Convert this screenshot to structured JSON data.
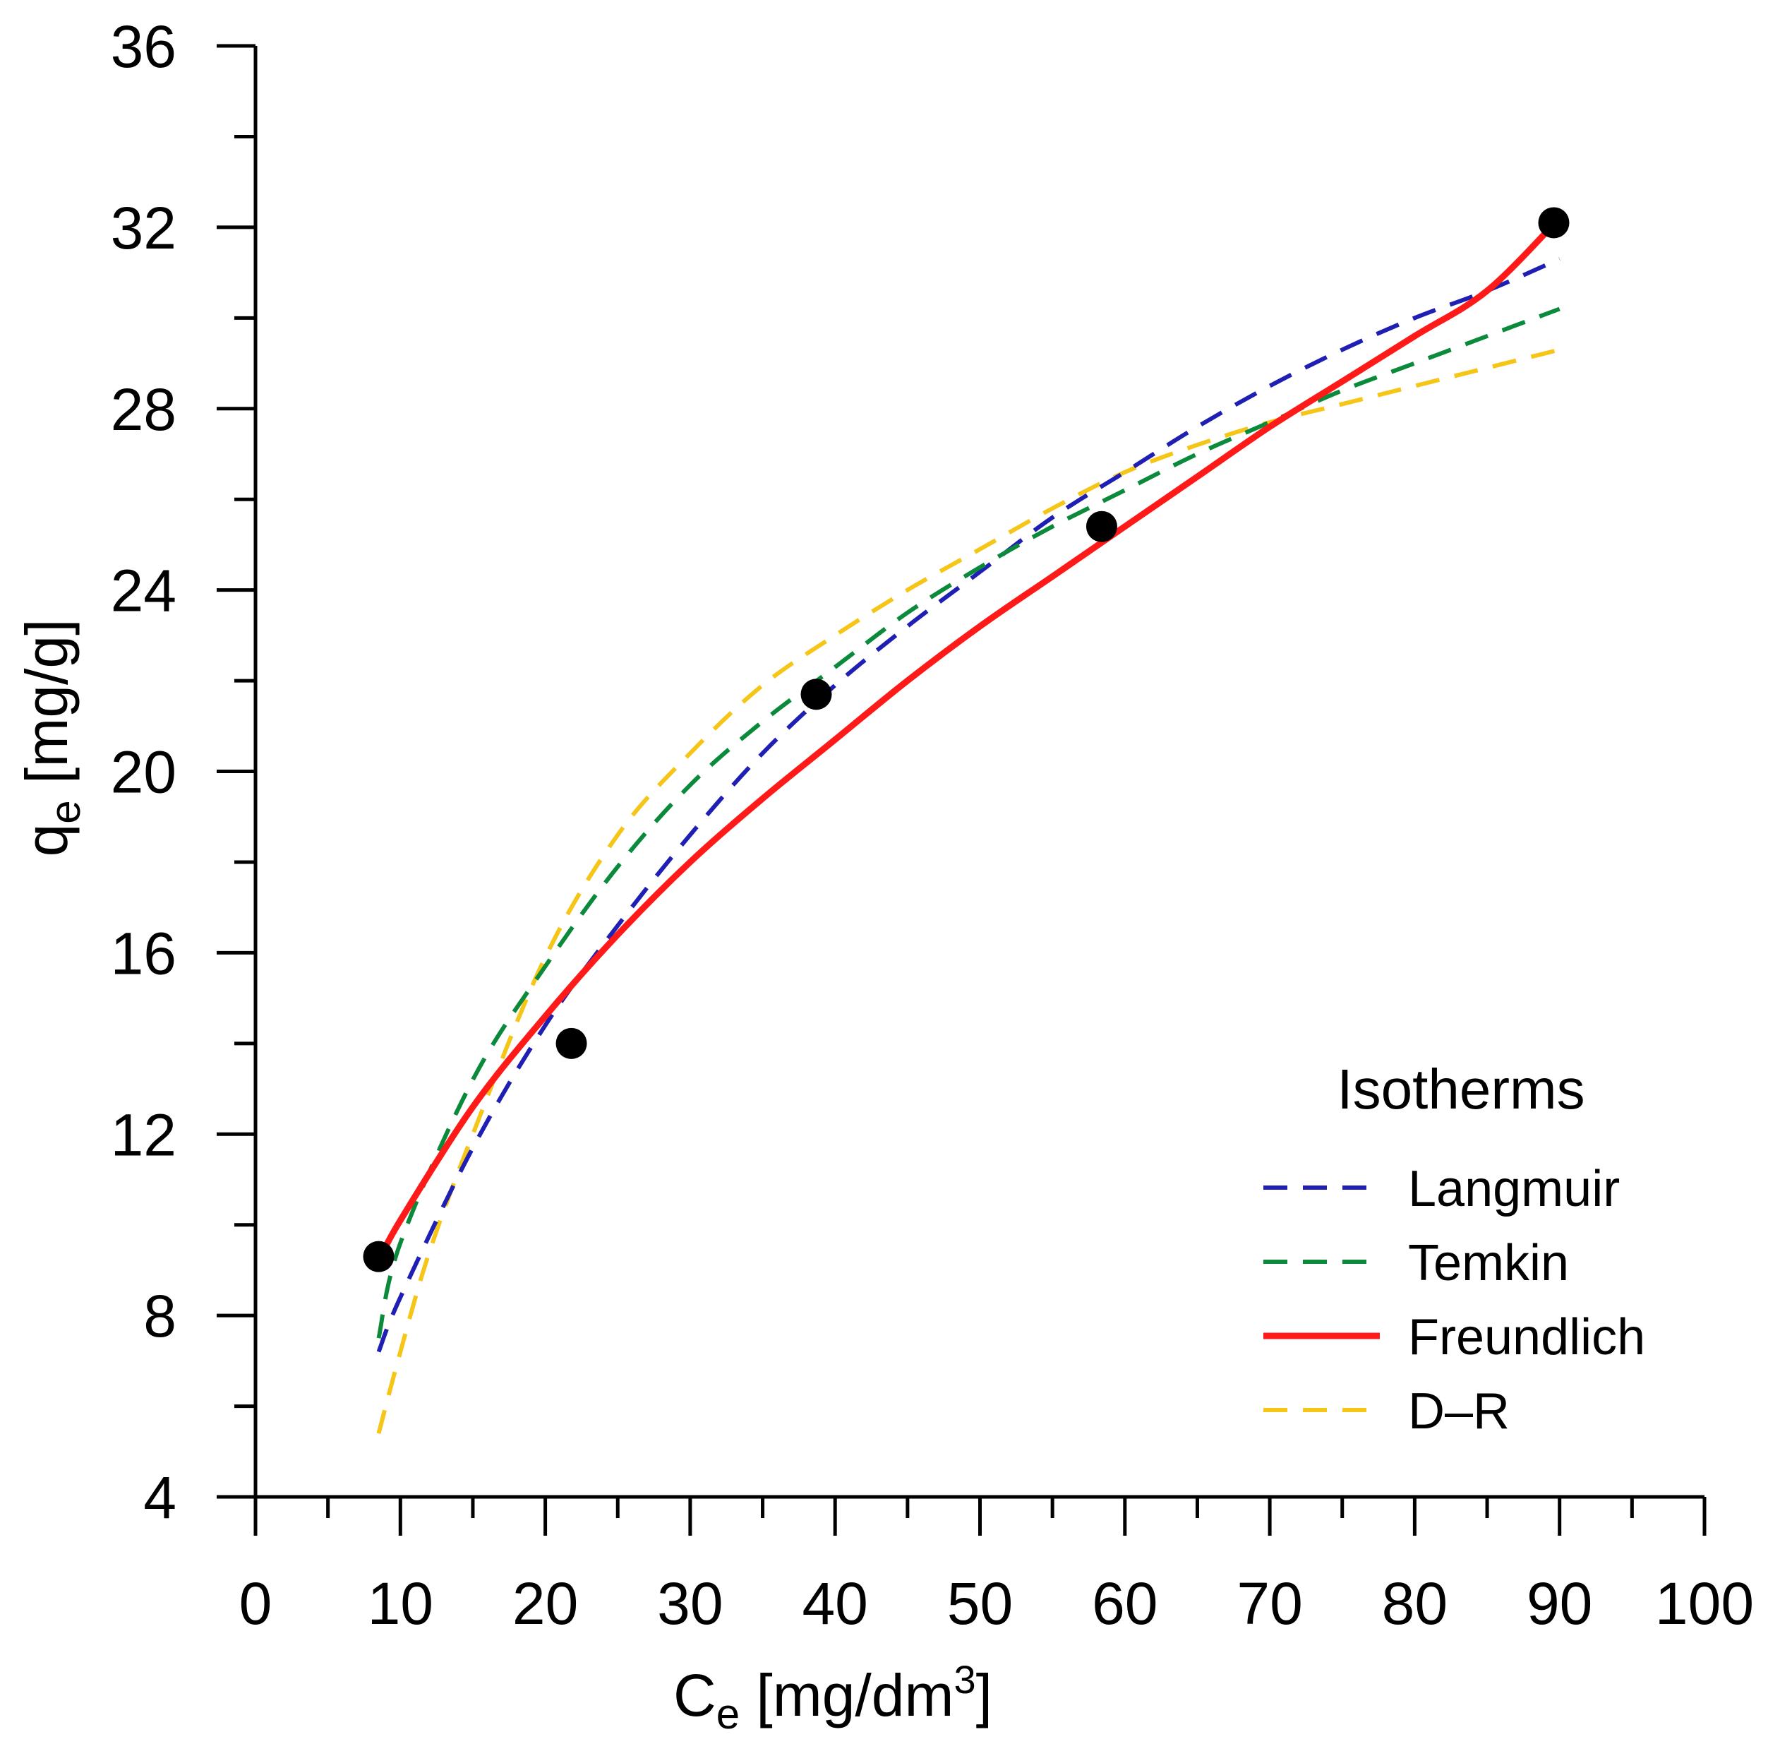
{
  "chart_data": {
    "type": "line",
    "xlabel_main": "C",
    "xlabel_sub": "e",
    "xlabel_unit_pre": " [mg/dm",
    "xlabel_unit_sup": "3",
    "xlabel_unit_post": "]",
    "ylabel_main": "q",
    "ylabel_sub": "e",
    "ylabel_unit": " [mg/g]",
    "xlim": [
      0,
      100
    ],
    "ylim": [
      4,
      36
    ],
    "x_major_ticks": [
      0,
      10,
      20,
      30,
      40,
      50,
      60,
      70,
      80,
      90,
      100
    ],
    "x_minor_ticks": [
      5,
      15,
      25,
      35,
      45,
      55,
      65,
      75,
      85,
      95
    ],
    "y_major_ticks": [
      4,
      8,
      12,
      16,
      20,
      24,
      28,
      32,
      36
    ],
    "y_minor_ticks": [
      6,
      10,
      14,
      18,
      22,
      26,
      30,
      34
    ],
    "experimental_points": {
      "x": [
        8.5,
        21.8,
        38.7,
        58.4,
        89.6
      ],
      "y": [
        9.3,
        14.0,
        21.7,
        25.4,
        32.1
      ]
    },
    "legend": {
      "title": "Isotherms",
      "position": "bottom-right"
    },
    "series": [
      {
        "name": "Langmuir",
        "color": "#1f1fb4",
        "style": "dashed",
        "x": [
          8.5,
          10,
          15,
          20,
          25,
          30,
          35,
          40,
          45,
          50,
          55,
          60,
          65,
          70,
          75,
          80,
          85,
          90
        ],
        "y": [
          7.2,
          8.4,
          11.7,
          14.4,
          16.6,
          18.6,
          20.4,
          21.9,
          23.2,
          24.4,
          25.6,
          26.6,
          27.6,
          28.5,
          29.3,
          30.0,
          30.6,
          31.3
        ]
      },
      {
        "name": "Temkin",
        "color": "#0a8a3a",
        "style": "dashed",
        "x": [
          8.5,
          10,
          15,
          20,
          25,
          30,
          35,
          40,
          45,
          50,
          55,
          60,
          65,
          70,
          75,
          80,
          85,
          90
        ],
        "y": [
          7.5,
          9.6,
          13.2,
          15.7,
          17.9,
          19.7,
          21.1,
          22.3,
          23.5,
          24.5,
          25.4,
          26.2,
          27.0,
          27.7,
          28.4,
          29.0,
          29.6,
          30.2
        ]
      },
      {
        "name": "Freundlich",
        "color": "#ff1a1a",
        "style": "solid",
        "x": [
          8.5,
          10,
          15,
          20,
          25,
          30,
          35,
          40,
          45,
          50,
          55,
          60,
          65,
          70,
          75,
          80,
          85,
          90
        ],
        "y": [
          9.2,
          10.1,
          12.6,
          14.6,
          16.4,
          18.0,
          19.4,
          20.7,
          22.0,
          23.2,
          24.3,
          25.4,
          26.5,
          27.6,
          28.6,
          29.6,
          30.6,
          32.2
        ]
      },
      {
        "name": "D–R",
        "color": "#f5c518",
        "style": "dashed",
        "x": [
          8.5,
          10,
          12,
          15,
          20,
          25,
          30,
          35,
          40,
          45,
          50,
          55,
          60,
          65,
          70,
          75,
          80,
          85,
          90
        ],
        "y": [
          5.4,
          7.2,
          9.4,
          12.0,
          15.9,
          18.6,
          20.4,
          21.9,
          23.0,
          24.0,
          24.9,
          25.8,
          26.6,
          27.2,
          27.7,
          28.1,
          28.5,
          28.9,
          29.3
        ]
      }
    ]
  }
}
